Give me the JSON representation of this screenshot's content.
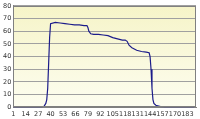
{
  "chart_data": {
    "type": "line",
    "x": [
      1,
      10,
      20,
      30,
      33,
      35,
      36,
      37,
      38,
      39,
      40,
      45,
      50,
      55,
      60,
      65,
      70,
      75,
      78,
      79,
      80,
      82,
      85,
      90,
      95,
      100,
      105,
      110,
      115,
      118,
      120,
      122,
      125,
      130,
      135,
      140,
      143,
      144,
      145,
      146,
      147,
      148,
      150,
      155,
      160,
      170,
      180,
      190
    ],
    "values": [
      0,
      0,
      0,
      0,
      0.5,
      3,
      6,
      15,
      35,
      55,
      66,
      67,
      66.5,
      66,
      65.5,
      65,
      65,
      64.5,
      64.5,
      63,
      60,
      58,
      57.5,
      57.5,
      57,
      56.5,
      55,
      54,
      53,
      53,
      52,
      49,
      47,
      45,
      44,
      43.5,
      43,
      40,
      30,
      15,
      6,
      3,
      1.5,
      0.5,
      0,
      0,
      0,
      0
    ],
    "color": "#1c1c8a",
    "xlim": [
      1,
      192
    ],
    "xticks": [
      1,
      14,
      27,
      40,
      53,
      66,
      79,
      92,
      105,
      118,
      131,
      144,
      157,
      170,
      183
    ],
    "ylim": [
      0,
      80
    ],
    "yticks": [
      0,
      10,
      20,
      30,
      40,
      50,
      60,
      70,
      80
    ],
    "grid": true
  }
}
